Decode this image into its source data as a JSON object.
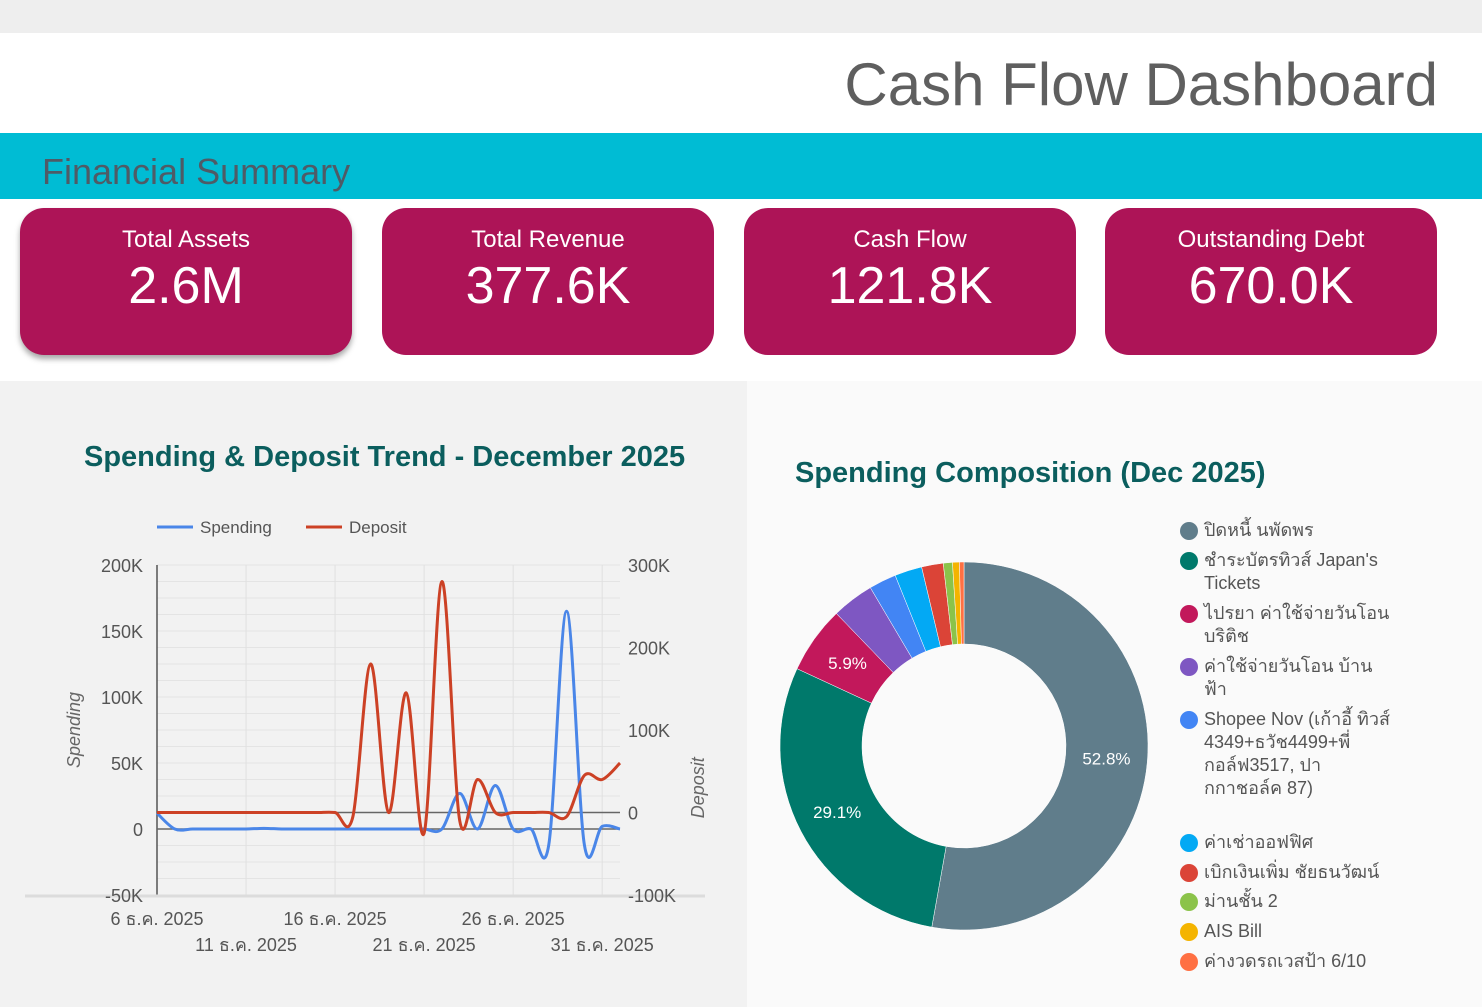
{
  "header": {
    "title": "Cash Flow Dashboard"
  },
  "section": {
    "title": "Financial Summary"
  },
  "kpis": [
    {
      "label": "Total Assets",
      "value": "2.6M"
    },
    {
      "label": "Total Revenue",
      "value": "377.6K"
    },
    {
      "label": "Cash Flow",
      "value": "121.8K"
    },
    {
      "label": "Outstanding Debt",
      "value": "670.0K"
    }
  ],
  "colors": {
    "band": "#00bcd4",
    "card": "#ad1457",
    "chart_title": "#0b5e5e"
  },
  "chart_data": [
    {
      "type": "line",
      "title": "Spending & Deposit Trend - December 2025",
      "legend": [
        "Spending",
        "Deposit"
      ],
      "legend_position": "top",
      "ylabel": "Spending",
      "y2label": "Deposit",
      "ylim": [
        -50000,
        200000
      ],
      "y2lim": [
        -100000,
        300000
      ],
      "yticks": [
        "200K",
        "150K",
        "100K",
        "50K",
        "0",
        "-50K"
      ],
      "y2ticks": [
        "300K",
        "200K",
        "100K",
        "0",
        "-100K"
      ],
      "xticks_row1": [
        "6 ธ.ค. 2025",
        "16 ธ.ค. 2025",
        "26 ธ.ค. 2025"
      ],
      "xticks_row2": [
        "11 ธ.ค. 2025",
        "21 ธ.ค. 2025",
        "31 ธ.ค. 2025"
      ],
      "x": [
        6,
        7,
        8,
        9,
        10,
        11,
        12,
        13,
        14,
        15,
        16,
        17,
        18,
        19,
        20,
        21,
        22,
        23,
        24,
        25,
        26,
        27,
        28,
        29,
        30,
        31,
        32
      ],
      "series": [
        {
          "name": "Spending",
          "axis": "left",
          "color": "#4a86e8",
          "values": [
            12000,
            0,
            0,
            0,
            0,
            0,
            500,
            0,
            0,
            0,
            0,
            0,
            0,
            0,
            0,
            0,
            0,
            27000,
            0,
            33000,
            0,
            0,
            -12000,
            165000,
            -12000,
            2000,
            0
          ]
        },
        {
          "name": "Deposit",
          "axis": "right",
          "color": "#cc4125",
          "values": [
            0,
            0,
            0,
            0,
            0,
            0,
            0,
            0,
            0,
            0,
            0,
            -5000,
            180000,
            0,
            145000,
            -25000,
            280000,
            -10000,
            40000,
            0,
            0,
            0,
            0,
            -5000,
            45000,
            40000,
            60000
          ]
        }
      ],
      "grid": true
    },
    {
      "type": "pie",
      "title": "Spending Composition (Dec 2025)",
      "legend_position": "right",
      "slices": [
        {
          "label": "ปิดหนี้ นพัดพร",
          "value": 52.8,
          "color": "#607d8b",
          "show_label": "52.8%"
        },
        {
          "label": "ชำระบัตรทิวส์ Japan's Tickets",
          "value": 29.1,
          "color": "#00796b",
          "show_label": "29.1%"
        },
        {
          "label": "ไปรยา ค่าใช้จ่ายวันโอน บริติช",
          "value": 5.9,
          "color": "#c2185b",
          "show_label": "5.9%"
        },
        {
          "label": "ค่าใช้จ่ายวันโอน บ้าน ฟ้า",
          "value": 3.7,
          "color": "#7e57c2",
          "show_label": ""
        },
        {
          "label": "Shopee Nov (เก้าอี้ ทิวส์ 4349+ธวัช4499+พี่ กอล์ฟ3517, ปา กกาชอล์ค 87)",
          "value": 2.4,
          "color": "#4285f4",
          "show_label": ""
        },
        {
          "label": "ค่าเช่าออฟฟิศ",
          "value": 2.4,
          "color": "#03a9f4",
          "show_label": ""
        },
        {
          "label": "เบิกเงินเพิ่ม ชัยธนวัฒน์",
          "value": 1.9,
          "color": "#db4437",
          "show_label": ""
        },
        {
          "label": "ม่านชั้น 2",
          "value": 0.8,
          "color": "#8bc34a",
          "show_label": ""
        },
        {
          "label": "AIS Bill",
          "value": 0.6,
          "color": "#f4b400",
          "show_label": ""
        },
        {
          "label": "ค่างวดรถเวสป้า 6/10",
          "value": 0.4,
          "color": "#ff7043",
          "show_label": ""
        }
      ]
    }
  ]
}
